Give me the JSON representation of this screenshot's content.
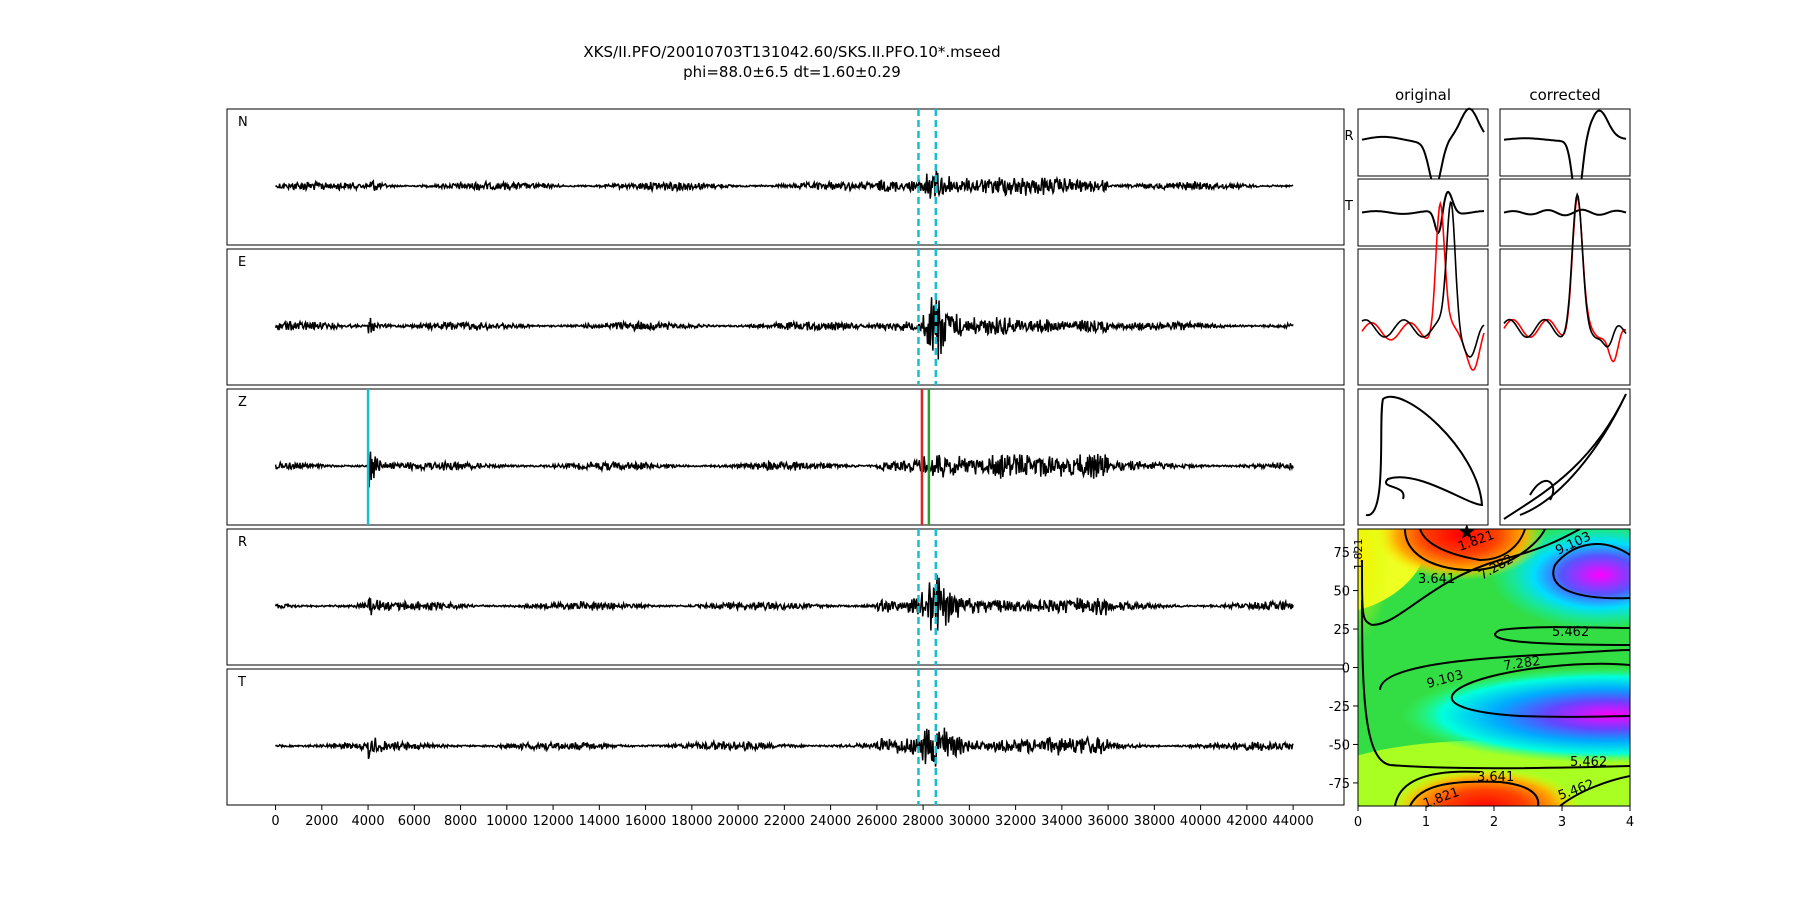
{
  "title": {
    "line1": "XKS/II.PFO/20010703T131042.60/SKS.II.PFO.10*.mseed",
    "line2": "phi=88.0±6.5 dt=1.60±0.29"
  },
  "chart_data": [
    {
      "type": "line",
      "name": "seismogram-panels",
      "panels": [
        "N",
        "E",
        "Z",
        "R",
        "T"
      ],
      "x_ticks": [
        0,
        2000,
        4000,
        6000,
        8000,
        10000,
        12000,
        14000,
        16000,
        18000,
        20000,
        22000,
        24000,
        26000,
        28000,
        30000,
        32000,
        34000,
        36000,
        38000,
        40000,
        42000,
        44000
      ],
      "xlim": [
        -2100,
        46200
      ],
      "trace_start": 0,
      "trace_end": 44000,
      "p_arrival": 4000,
      "s_arrival": 4200,
      "window_start": 27800,
      "window_end": 28550,
      "pick_red": 27950,
      "pick_green": 28250,
      "window_panels": [
        "N",
        "E",
        "R",
        "T"
      ],
      "pick_panels": [
        "Z"
      ],
      "colors": {
        "trace": "#000000",
        "window": "#17becf",
        "pick_red": "#d62728",
        "pick_green": "#2ca02c",
        "arrival": "#17becf"
      }
    },
    {
      "type": "line",
      "name": "waveform-comparison",
      "column_titles": [
        "original",
        "corrected"
      ],
      "row_labels": [
        "R",
        "T"
      ],
      "colors": {
        "reference": "#ff0000",
        "trace": "#000000"
      }
    },
    {
      "type": "heatmap",
      "name": "error-surface",
      "x_ticks": [
        0,
        1,
        2,
        3,
        4
      ],
      "y_ticks": [
        75,
        50,
        25,
        0,
        -25,
        -50,
        -75
      ],
      "xlim": [
        0,
        4
      ],
      "ylim": [
        -90,
        90
      ],
      "best_dt": 1.6,
      "best_phi": 88.0,
      "contour_labels": [
        "1.821",
        "3.641",
        "5.462",
        "7.282",
        "9.103"
      ]
    }
  ]
}
